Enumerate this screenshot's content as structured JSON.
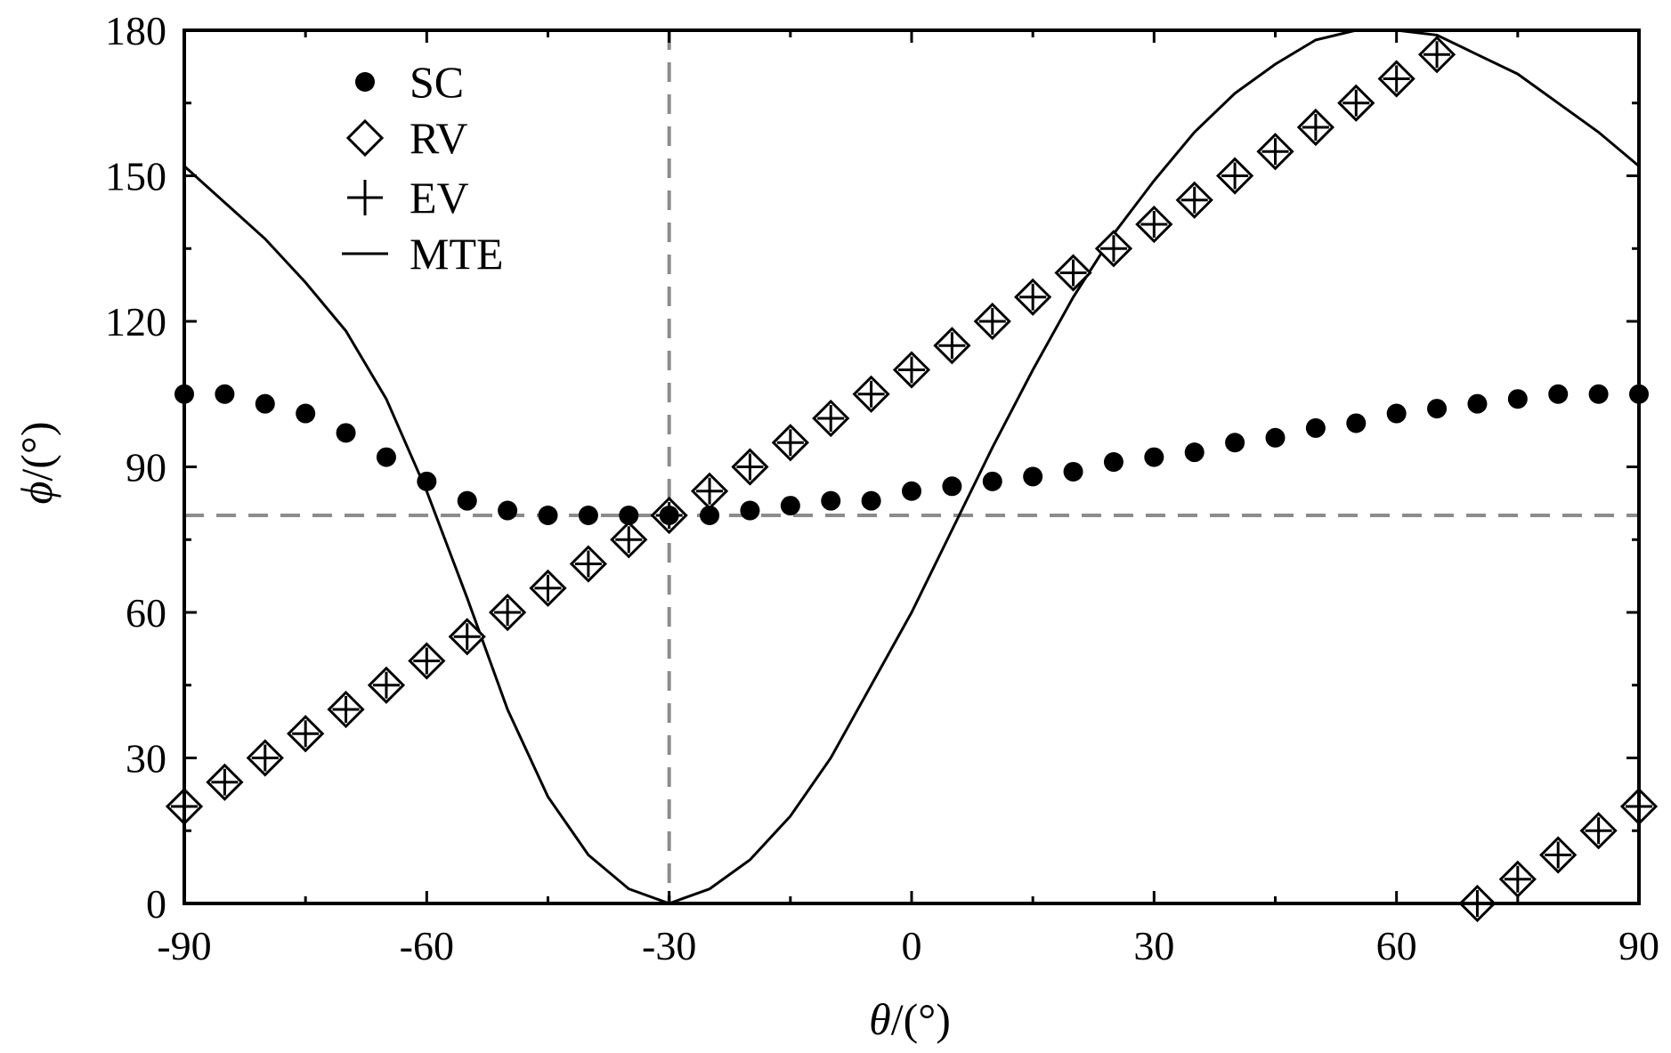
{
  "chart_data": {
    "type": "scatter",
    "title": "",
    "xlabel_var": "θ",
    "xlabel_unit": "/(°)",
    "ylabel_var": "ϕ",
    "ylabel_unit": "/(°)",
    "xlim": [
      -90,
      90
    ],
    "ylim": [
      0,
      180
    ],
    "xticks": [
      -90,
      -60,
      -30,
      0,
      30,
      60,
      90
    ],
    "yticks": [
      0,
      30,
      60,
      90,
      120,
      150,
      180
    ],
    "xtick_labels": [
      "-90",
      "-60",
      "-30",
      "0",
      "30",
      "60",
      "90"
    ],
    "ytick_labels": [
      "0",
      "30",
      "60",
      "90",
      "120",
      "150",
      "180"
    ],
    "grid": false,
    "legend_position": "top-left",
    "reference_lines": [
      {
        "orientation": "vertical",
        "value": -30,
        "style": "dashed",
        "color": "#8c8c8c"
      },
      {
        "orientation": "horizontal",
        "value": 80,
        "style": "dashed",
        "color": "#8c8c8c"
      }
    ],
    "series": [
      {
        "name": "SC",
        "marker": "filled-circle",
        "color": "#000000",
        "x": [
          -90,
          -85,
          -80,
          -75,
          -70,
          -65,
          -60,
          -55,
          -50,
          -45,
          -40,
          -35,
          -30,
          -25,
          -20,
          -15,
          -10,
          -5,
          0,
          5,
          10,
          15,
          20,
          25,
          30,
          35,
          40,
          45,
          50,
          55,
          60,
          65,
          70,
          75,
          80,
          85,
          90
        ],
        "y": [
          105,
          105,
          103,
          101,
          97,
          92,
          87,
          83,
          81,
          80,
          80,
          80,
          80,
          80,
          81,
          82,
          83,
          83,
          85,
          86,
          87,
          88,
          89,
          91,
          92,
          93,
          95,
          96,
          98,
          99,
          101,
          102,
          103,
          104,
          105,
          105,
          105
        ]
      },
      {
        "name": "RV",
        "marker": "open-diamond",
        "color": "#000000",
        "x": [
          -90,
          -85,
          -80,
          -75,
          -70,
          -65,
          -60,
          -55,
          -50,
          -45,
          -40,
          -35,
          -30,
          -25,
          -20,
          -15,
          -10,
          -5,
          0,
          5,
          10,
          15,
          20,
          25,
          30,
          35,
          40,
          45,
          50,
          55,
          60,
          65,
          70,
          75,
          80,
          85,
          90
        ],
        "y": [
          20,
          25,
          30,
          35,
          40,
          45,
          50,
          55,
          60,
          65,
          70,
          75,
          80,
          85,
          90,
          95,
          100,
          105,
          110,
          115,
          120,
          125,
          130,
          135,
          140,
          145,
          150,
          155,
          160,
          165,
          170,
          175,
          0,
          5,
          10,
          15,
          20
        ]
      },
      {
        "name": "EV",
        "marker": "plus",
        "color": "#000000",
        "x": [
          -90,
          -85,
          -80,
          -75,
          -70,
          -65,
          -60,
          -55,
          -50,
          -45,
          -40,
          -35,
          -30,
          -25,
          -20,
          -15,
          -10,
          -5,
          0,
          5,
          10,
          15,
          20,
          25,
          30,
          35,
          40,
          45,
          50,
          55,
          60,
          65,
          70,
          75,
          80,
          85,
          90
        ],
        "y": [
          20,
          25,
          30,
          35,
          40,
          45,
          50,
          55,
          60,
          65,
          70,
          75,
          80,
          85,
          90,
          95,
          100,
          105,
          110,
          115,
          120,
          125,
          130,
          135,
          140,
          145,
          150,
          155,
          160,
          165,
          170,
          175,
          0,
          5,
          10,
          15,
          20
        ]
      },
      {
        "name": "MTE",
        "marker": "line",
        "color": "#000000",
        "x": [
          -90,
          -80,
          -75,
          -70,
          -65,
          -60,
          -55,
          -50,
          -45,
          -40,
          -35,
          -30,
          -25,
          -20,
          -15,
          -10,
          -5,
          0,
          5,
          10,
          15,
          20,
          25,
          30,
          35,
          40,
          45,
          50,
          55,
          60,
          65,
          70,
          75,
          80,
          85,
          90
        ],
        "y": [
          152,
          137,
          128,
          118,
          104,
          85,
          63,
          40,
          22,
          10,
          3,
          0,
          3,
          9,
          18,
          30,
          45,
          60,
          77,
          94,
          110,
          125,
          138,
          149,
          159,
          167,
          173,
          178,
          180,
          180,
          179,
          175,
          171,
          165,
          159,
          152
        ]
      }
    ]
  }
}
